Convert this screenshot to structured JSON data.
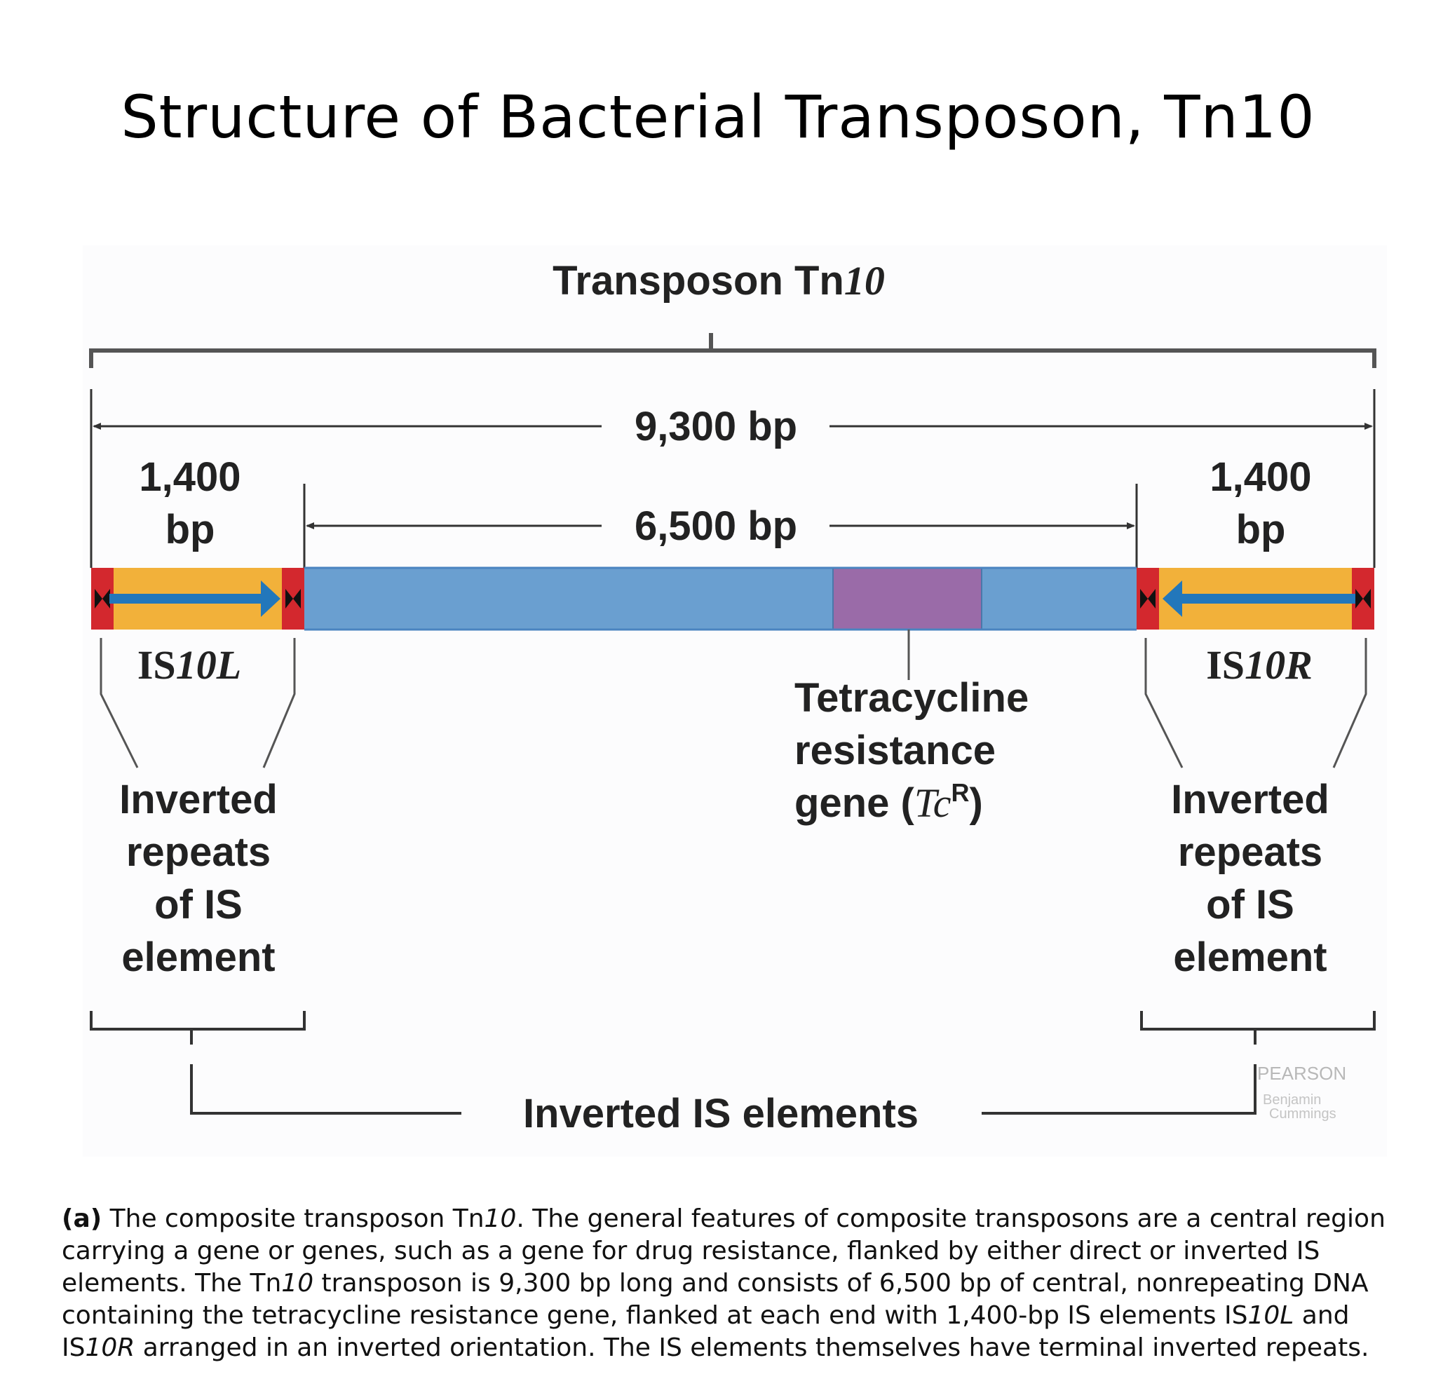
{
  "title": "Structure of Bacterial Transposon, Tn10",
  "figure": {
    "transposon_label_main": "Transposon Tn",
    "transposon_label_num": "10",
    "total_length": "9,300 bp",
    "central_length": "6,500 bp",
    "left_is_length_line1": "1,400",
    "left_is_length_line2": "bp",
    "right_is_length_line1": "1,400",
    "right_is_length_line2": "bp",
    "left_is_name_prefix": "IS",
    "left_is_name_suffix": "10L",
    "right_is_name_prefix": "IS",
    "right_is_name_suffix": "10R",
    "gene_label_line1": "Tetracycline",
    "gene_label_line2": "resistance",
    "gene_label_line3_prefix": "gene (",
    "gene_label_line3_italic": "Tc",
    "gene_label_line3_sup": "R",
    "gene_label_line3_suffix": ")",
    "inverted_repeats_left": [
      "Inverted",
      "repeats",
      "of IS",
      "element"
    ],
    "inverted_repeats_right": [
      "Inverted",
      "repeats",
      "of IS",
      "element"
    ],
    "inverted_is_elements": "Inverted IS elements",
    "publisher_line1": "PEARSON",
    "publisher_line2": "Benjamin",
    "publisher_line3": "Cummings",
    "colors": {
      "is_element": "#f2b13a",
      "central_region": "#6a9fd0",
      "tc_gene": "#9a6ba8",
      "inverted_repeat": "#d3282e",
      "arrow": "#2277bb"
    }
  },
  "caption": {
    "label": "(a)",
    "t1": " The composite transposon Tn",
    "t1_italic": "10",
    "t2": ". The general features of composite transposons are a central region carrying a gene or genes, such as a gene for drug resistance, flanked by either direct or inverted IS elements. The Tn",
    "t2_italic": "10",
    "t3": " transposon is 9,300 bp long and consists of 6,500 bp of central, nonrepeating DNA containing the tetracycline resistance gene, flanked at each end with 1,400-bp IS elements IS",
    "t3_italic": "10L",
    "t4": " and IS",
    "t4_italic": "10R",
    "t5": " arranged in an inverted orientation. The IS elements themselves have terminal inverted repeats."
  }
}
